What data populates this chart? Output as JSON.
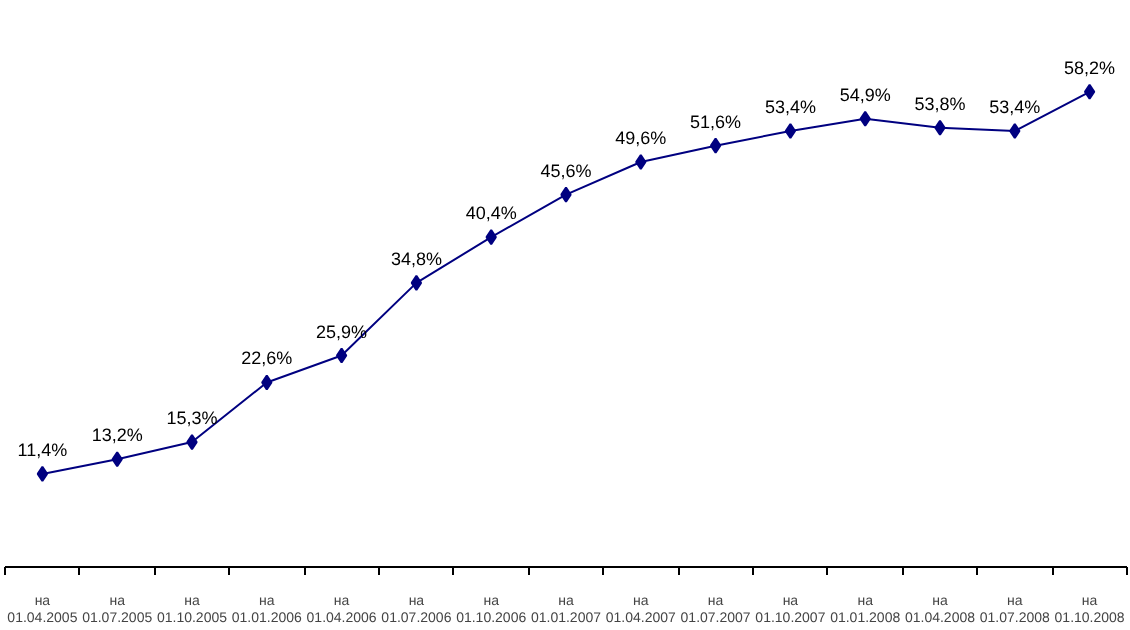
{
  "chart_data": {
    "type": "line",
    "categories": [
      "на\n01.04.2005",
      "на\n01.07.2005",
      "на\n01.10.2005",
      "на\n01.01.2006",
      "на\n01.04.2006",
      "на\n01.07.2006",
      "на\n01.10.2006",
      "на\n01.01.2007",
      "на\n01.04.2007",
      "на\n01.07.2007",
      "на\n01.10.2007",
      "на\n01.01.2008",
      "на\n01.04.2008",
      "на\n01.07.2008",
      "на\n01.10.2008"
    ],
    "series": [
      {
        "color": "#000080",
        "values": [
          11.4,
          13.2,
          15.3,
          22.6,
          25.9,
          34.8,
          40.4,
          45.6,
          49.6,
          51.6,
          53.4,
          54.9,
          53.8,
          53.4,
          58.2
        ],
        "value_labels": [
          "11,4%",
          "13,2%",
          "15,3%",
          "22,6%",
          "25,9%",
          "34,8%",
          "40,4%",
          "45,6%",
          "49,6%",
          "51,6%",
          "53,4%",
          "54,9%",
          "53,8%",
          "53,4%",
          "58,2%"
        ]
      }
    ],
    "marker": "diamond",
    "grid": false,
    "tick_labels": "x"
  }
}
